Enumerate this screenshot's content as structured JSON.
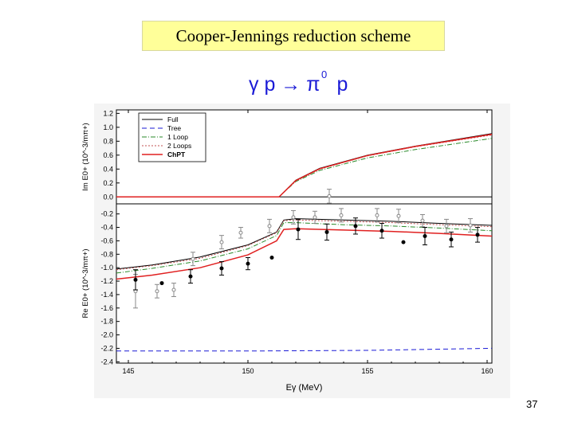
{
  "slide": {
    "title": "Cooper-Jennings reduction scheme",
    "reaction": "γ p → π",
    "reaction_sup": "0",
    "reaction_tail": " p",
    "page_number": "37"
  },
  "chart_data": [
    {
      "type": "line",
      "panel": "top",
      "ylabel": "Im E0+ (10^-3/mπ+)",
      "ylim": [
        -0.1,
        1.25
      ],
      "yticks": [
        0.0,
        0.2,
        0.4,
        0.6,
        0.8,
        1.0,
        1.2
      ],
      "xlim": [
        144.5,
        160.2
      ],
      "legend": {
        "placement": "top-left",
        "entries": [
          "Full",
          "Tree",
          "1 Loop",
          "2 Loops",
          "ChPT"
        ]
      },
      "series": [
        {
          "name": "Full",
          "color": "#000000",
          "x": [
            144.5,
            151.3,
            151.45,
            152,
            153,
            155,
            157,
            160.2
          ],
          "values": [
            0.0,
            0.0,
            0.05,
            0.24,
            0.41,
            0.6,
            0.73,
            0.91
          ]
        },
        {
          "name": "1 Loop",
          "color": "#2a8a2a",
          "x": [
            144.5,
            151.3,
            151.45,
            152,
            153,
            155,
            157,
            160.2
          ],
          "values": [
            0.0,
            0.0,
            0.05,
            0.22,
            0.38,
            0.56,
            0.68,
            0.84
          ]
        },
        {
          "name": "2 Loops",
          "color": "#c05050",
          "x": [
            144.5,
            151.3,
            151.45,
            152,
            153,
            155,
            157,
            160.2
          ],
          "values": [
            0.0,
            0.0,
            0.05,
            0.23,
            0.4,
            0.59,
            0.72,
            0.89
          ]
        },
        {
          "name": "ChPT",
          "color": "#e02020",
          "x": [
            144.5,
            151.3,
            151.45,
            152,
            153,
            155,
            157,
            160.2
          ],
          "values": [
            0.0,
            0.0,
            0.05,
            0.235,
            0.405,
            0.595,
            0.725,
            0.9
          ]
        }
      ],
      "data_points": [
        {
          "x": 153.4,
          "y": 0.01,
          "err": 0.1
        }
      ]
    },
    {
      "type": "line",
      "panel": "bottom",
      "ylabel": "Re E0+ (10^-3/mπ+)",
      "xlabel": "Eγ (MeV)",
      "ylim": [
        -2.42,
        -0.05
      ],
      "yticks": [
        -0.2,
        -0.4,
        -0.6,
        -0.8,
        -1.0,
        -1.2,
        -1.4,
        -1.6,
        -1.8,
        -2.0,
        -2.2,
        -2.4
      ],
      "xlim": [
        144.5,
        160.2
      ],
      "xticks": [
        145,
        150,
        155,
        160
      ],
      "series": [
        {
          "name": "Full",
          "color": "#000000",
          "x": [
            144.5,
            146,
            148,
            150,
            151.2,
            151.5,
            152,
            154,
            156,
            158,
            160.2
          ],
          "values": [
            -1.02,
            -0.96,
            -0.84,
            -0.66,
            -0.47,
            -0.29,
            -0.27,
            -0.29,
            -0.31,
            -0.34,
            -0.37
          ]
        },
        {
          "name": "Tree",
          "color": "#1a1ad6",
          "x": [
            144.5,
            150,
            155,
            160.2
          ],
          "values": [
            -2.24,
            -2.24,
            -2.23,
            -2.2
          ]
        },
        {
          "name": "1 Loop",
          "color": "#2a8a2a",
          "x": [
            144.5,
            146,
            148,
            150,
            151.2,
            151.5,
            152,
            154,
            156,
            158,
            160.2
          ],
          "values": [
            -1.08,
            -1.01,
            -0.9,
            -0.72,
            -0.52,
            -0.33,
            -0.33,
            -0.36,
            -0.38,
            -0.41,
            -0.45
          ]
        },
        {
          "name": "2 Loops",
          "color": "#c05050",
          "x": [
            144.5,
            146,
            148,
            150,
            151.2,
            151.5,
            152,
            154,
            156,
            158,
            160.2
          ],
          "values": [
            -1.03,
            -0.97,
            -0.86,
            -0.67,
            -0.48,
            -0.3,
            -0.29,
            -0.31,
            -0.33,
            -0.36,
            -0.39
          ]
        },
        {
          "name": "ChPT",
          "color": "#e02020",
          "x": [
            144.5,
            146,
            148,
            150,
            151.2,
            151.5,
            152,
            154,
            156,
            158,
            160.2
          ],
          "values": [
            -1.17,
            -1.11,
            -1.0,
            -0.81,
            -0.6,
            -0.43,
            -0.42,
            -0.44,
            -0.46,
            -0.49,
            -0.53
          ]
        }
      ],
      "data_points_filled": [
        {
          "x": 145.3,
          "y": -1.18,
          "err": 0.15
        },
        {
          "x": 146.4,
          "y": -1.23,
          "err": 0.0
        },
        {
          "x": 147.6,
          "y": -1.13,
          "err": 0.1
        },
        {
          "x": 148.9,
          "y": -1.01,
          "err": 0.1
        },
        {
          "x": 150.0,
          "y": -0.94,
          "err": 0.09
        },
        {
          "x": 151.0,
          "y": -0.85,
          "err": 0.0
        },
        {
          "x": 152.1,
          "y": -0.43,
          "err": 0.15
        },
        {
          "x": 153.3,
          "y": -0.47,
          "err": 0.12
        },
        {
          "x": 154.5,
          "y": -0.38,
          "err": 0.12
        },
        {
          "x": 155.6,
          "y": -0.45,
          "err": 0.11
        },
        {
          "x": 156.5,
          "y": -0.62,
          "err": 0.0
        },
        {
          "x": 157.4,
          "y": -0.53,
          "err": 0.13
        },
        {
          "x": 158.5,
          "y": -0.58,
          "err": 0.11
        },
        {
          "x": 159.6,
          "y": -0.51,
          "err": 0.11
        }
      ],
      "data_points_open": [
        {
          "x": 145.3,
          "y": -1.35,
          "err": 0.25
        },
        {
          "x": 146.2,
          "y": -1.35,
          "err": 0.1
        },
        {
          "x": 146.9,
          "y": -1.33,
          "err": 0.1
        },
        {
          "x": 147.7,
          "y": -0.87,
          "err": 0.1
        },
        {
          "x": 148.9,
          "y": -0.62,
          "err": 0.1
        },
        {
          "x": 149.7,
          "y": -0.48,
          "err": 0.08
        },
        {
          "x": 150.9,
          "y": -0.38,
          "err": 0.1
        },
        {
          "x": 151.9,
          "y": -0.25,
          "err": 0.1
        },
        {
          "x": 152.8,
          "y": -0.25,
          "err": 0.09
        },
        {
          "x": 153.9,
          "y": -0.22,
          "err": 0.1
        },
        {
          "x": 155.4,
          "y": -0.22,
          "err": 0.1
        },
        {
          "x": 156.3,
          "y": -0.23,
          "err": 0.1
        },
        {
          "x": 157.3,
          "y": -0.3,
          "err": 0.09
        },
        {
          "x": 158.3,
          "y": -0.38,
          "err": 0.1
        },
        {
          "x": 159.3,
          "y": -0.37,
          "err": 0.1
        }
      ]
    }
  ]
}
